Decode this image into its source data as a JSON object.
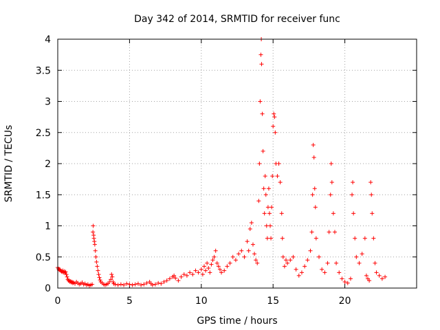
{
  "chart_data": {
    "type": "scatter",
    "title": "Day 342 of 2014, SRMTID for receiver func",
    "xlabel": "GPS time / hours",
    "ylabel": "SRMTID / TECUs",
    "xlim": [
      0,
      25
    ],
    "ylim": [
      0,
      4
    ],
    "xticks": [
      0,
      5,
      10,
      15,
      20
    ],
    "yticks": [
      0,
      0.5,
      1,
      1.5,
      2,
      2.5,
      3,
      3.5,
      4
    ],
    "xtick_labels": [
      "0",
      "5",
      "10",
      "15",
      "20"
    ],
    "ytick_labels": [
      "0",
      "0.5",
      "1",
      "1.5",
      "2",
      "2.5",
      "3",
      "3.5",
      "4"
    ],
    "grid": true,
    "marker": "+",
    "color": "#ff0000",
    "series": [
      {
        "name": "SRMTID",
        "points": [
          [
            0.0,
            0.33
          ],
          [
            0.05,
            0.31
          ],
          [
            0.1,
            0.29
          ],
          [
            0.15,
            0.3
          ],
          [
            0.2,
            0.28
          ],
          [
            0.25,
            0.27
          ],
          [
            0.3,
            0.26
          ],
          [
            0.35,
            0.28
          ],
          [
            0.4,
            0.25
          ],
          [
            0.45,
            0.27
          ],
          [
            0.5,
            0.24
          ],
          [
            0.55,
            0.26
          ],
          [
            0.6,
            0.22
          ],
          [
            0.65,
            0.18
          ],
          [
            0.7,
            0.14
          ],
          [
            0.75,
            0.12
          ],
          [
            0.8,
            0.12
          ],
          [
            0.85,
            0.1
          ],
          [
            0.9,
            0.11
          ],
          [
            0.95,
            0.09
          ],
          [
            1.0,
            0.1
          ],
          [
            1.05,
            0.08
          ],
          [
            1.1,
            0.09
          ],
          [
            1.2,
            0.07
          ],
          [
            1.3,
            0.1
          ],
          [
            1.4,
            0.08
          ],
          [
            1.5,
            0.06
          ],
          [
            1.6,
            0.07
          ],
          [
            1.7,
            0.09
          ],
          [
            1.8,
            0.06
          ],
          [
            1.9,
            0.07
          ],
          [
            2.0,
            0.05
          ],
          [
            2.1,
            0.06
          ],
          [
            2.2,
            0.04
          ],
          [
            2.3,
            0.05
          ],
          [
            2.4,
            0.06
          ],
          [
            2.45,
            0.9
          ],
          [
            2.47,
            1.0
          ],
          [
            2.5,
            0.85
          ],
          [
            2.52,
            0.8
          ],
          [
            2.55,
            0.75
          ],
          [
            2.58,
            0.7
          ],
          [
            2.62,
            0.6
          ],
          [
            2.66,
            0.5
          ],
          [
            2.7,
            0.42
          ],
          [
            2.75,
            0.35
          ],
          [
            2.8,
            0.28
          ],
          [
            2.85,
            0.22
          ],
          [
            2.9,
            0.17
          ],
          [
            2.95,
            0.13
          ],
          [
            3.0,
            0.1
          ],
          [
            3.1,
            0.08
          ],
          [
            3.2,
            0.06
          ],
          [
            3.3,
            0.05
          ],
          [
            3.4,
            0.06
          ],
          [
            3.5,
            0.07
          ],
          [
            3.6,
            0.1
          ],
          [
            3.7,
            0.14
          ],
          [
            3.75,
            0.22
          ],
          [
            3.8,
            0.18
          ],
          [
            3.85,
            0.1
          ],
          [
            3.9,
            0.07
          ],
          [
            4.0,
            0.06
          ],
          [
            4.2,
            0.05
          ],
          [
            4.4,
            0.06
          ],
          [
            4.6,
            0.05
          ],
          [
            4.8,
            0.07
          ],
          [
            5.0,
            0.06
          ],
          [
            5.2,
            0.05
          ],
          [
            5.4,
            0.06
          ],
          [
            5.6,
            0.07
          ],
          [
            5.8,
            0.05
          ],
          [
            6.0,
            0.06
          ],
          [
            6.2,
            0.08
          ],
          [
            6.4,
            0.1
          ],
          [
            6.5,
            0.07
          ],
          [
            6.6,
            0.05
          ],
          [
            6.8,
            0.06
          ],
          [
            7.0,
            0.08
          ],
          [
            7.2,
            0.07
          ],
          [
            7.4,
            0.1
          ],
          [
            7.6,
            0.12
          ],
          [
            7.8,
            0.15
          ],
          [
            8.0,
            0.18
          ],
          [
            8.1,
            0.2
          ],
          [
            8.2,
            0.16
          ],
          [
            8.4,
            0.12
          ],
          [
            8.6,
            0.18
          ],
          [
            8.8,
            0.22
          ],
          [
            9.0,
            0.2
          ],
          [
            9.2,
            0.25
          ],
          [
            9.4,
            0.22
          ],
          [
            9.6,
            0.28
          ],
          [
            9.8,
            0.25
          ],
          [
            10.0,
            0.3
          ],
          [
            10.1,
            0.22
          ],
          [
            10.2,
            0.35
          ],
          [
            10.3,
            0.28
          ],
          [
            10.4,
            0.4
          ],
          [
            10.5,
            0.32
          ],
          [
            10.6,
            0.25
          ],
          [
            10.7,
            0.38
          ],
          [
            10.8,
            0.45
          ],
          [
            10.9,
            0.5
          ],
          [
            11.0,
            0.6
          ],
          [
            11.1,
            0.4
          ],
          [
            11.2,
            0.35
          ],
          [
            11.3,
            0.3
          ],
          [
            11.4,
            0.25
          ],
          [
            11.6,
            0.28
          ],
          [
            11.8,
            0.35
          ],
          [
            12.0,
            0.4
          ],
          [
            12.2,
            0.5
          ],
          [
            12.4,
            0.45
          ],
          [
            12.6,
            0.55
          ],
          [
            12.8,
            0.6
          ],
          [
            13.0,
            0.5
          ],
          [
            13.2,
            0.75
          ],
          [
            13.3,
            0.6
          ],
          [
            13.4,
            0.95
          ],
          [
            13.5,
            1.05
          ],
          [
            13.6,
            0.7
          ],
          [
            13.7,
            0.55
          ],
          [
            13.8,
            0.45
          ],
          [
            13.9,
            0.4
          ],
          [
            14.0,
            1.4
          ],
          [
            14.05,
            2.0
          ],
          [
            14.1,
            3.0
          ],
          [
            14.15,
            3.75
          ],
          [
            14.18,
            4.0
          ],
          [
            14.2,
            3.6
          ],
          [
            14.25,
            2.8
          ],
          [
            14.3,
            2.2
          ],
          [
            14.35,
            1.6
          ],
          [
            14.4,
            1.2
          ],
          [
            14.45,
            1.8
          ],
          [
            14.5,
            1.5
          ],
          [
            14.55,
            1.0
          ],
          [
            14.6,
            0.8
          ],
          [
            14.65,
            1.3
          ],
          [
            14.7,
            1.6
          ],
          [
            14.75,
            1.2
          ],
          [
            14.8,
            1.0
          ],
          [
            14.85,
            0.8
          ],
          [
            14.9,
            1.3
          ],
          [
            14.95,
            1.8
          ],
          [
            15.0,
            2.6
          ],
          [
            15.05,
            2.8
          ],
          [
            15.1,
            2.75
          ],
          [
            15.15,
            2.5
          ],
          [
            15.2,
            2.0
          ],
          [
            15.3,
            1.8
          ],
          [
            15.4,
            2.0
          ],
          [
            15.5,
            1.7
          ],
          [
            15.6,
            1.2
          ],
          [
            15.65,
            0.8
          ],
          [
            15.7,
            0.5
          ],
          [
            15.8,
            0.35
          ],
          [
            15.9,
            0.45
          ],
          [
            16.0,
            0.4
          ],
          [
            16.2,
            0.45
          ],
          [
            16.4,
            0.5
          ],
          [
            16.6,
            0.3
          ],
          [
            16.8,
            0.2
          ],
          [
            17.0,
            0.25
          ],
          [
            17.2,
            0.35
          ],
          [
            17.4,
            0.45
          ],
          [
            17.6,
            0.6
          ],
          [
            17.7,
            0.9
          ],
          [
            17.75,
            1.5
          ],
          [
            17.8,
            2.3
          ],
          [
            17.85,
            2.1
          ],
          [
            17.9,
            1.6
          ],
          [
            17.95,
            1.3
          ],
          [
            18.0,
            0.8
          ],
          [
            18.2,
            0.5
          ],
          [
            18.4,
            0.3
          ],
          [
            18.6,
            0.25
          ],
          [
            18.8,
            0.4
          ],
          [
            18.9,
            0.9
          ],
          [
            19.0,
            1.5
          ],
          [
            19.05,
            2.0
          ],
          [
            19.1,
            1.7
          ],
          [
            19.2,
            1.2
          ],
          [
            19.3,
            0.9
          ],
          [
            19.4,
            0.4
          ],
          [
            19.6,
            0.25
          ],
          [
            19.8,
            0.15
          ],
          [
            20.0,
            0.1
          ],
          [
            20.2,
            0.08
          ],
          [
            20.4,
            0.15
          ],
          [
            20.5,
            1.5
          ],
          [
            20.55,
            1.7
          ],
          [
            20.6,
            1.2
          ],
          [
            20.7,
            0.8
          ],
          [
            20.8,
            0.5
          ],
          [
            21.0,
            0.4
          ],
          [
            21.2,
            0.55
          ],
          [
            21.4,
            0.8
          ],
          [
            21.5,
            0.2
          ],
          [
            21.6,
            0.15
          ],
          [
            21.7,
            0.12
          ],
          [
            21.8,
            1.7
          ],
          [
            21.85,
            1.5
          ],
          [
            21.9,
            1.2
          ],
          [
            22.0,
            0.8
          ],
          [
            22.1,
            0.4
          ],
          [
            22.2,
            0.25
          ],
          [
            22.4,
            0.2
          ],
          [
            22.6,
            0.15
          ],
          [
            22.8,
            0.18
          ]
        ]
      }
    ]
  }
}
